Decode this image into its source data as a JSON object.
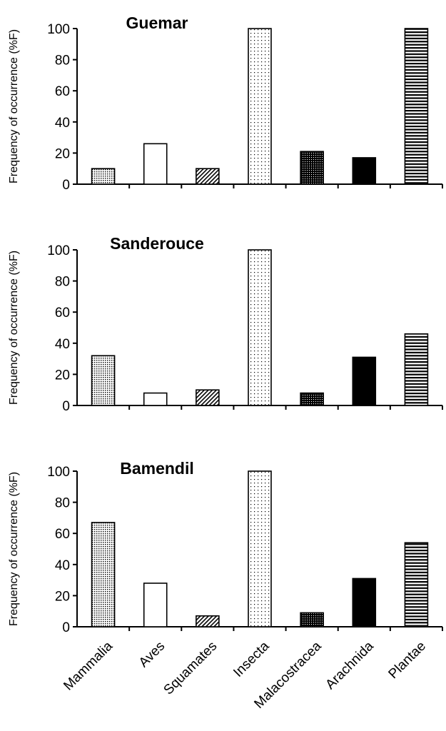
{
  "categories": [
    "Mammalia",
    "Aves",
    "Squamates",
    "Insecta",
    "Malacostracea",
    "Arachnida",
    "Plantae"
  ],
  "fill_styles": [
    "dense-dots",
    "white",
    "diagonal-hatch",
    "sparse-dots",
    "dark-dots",
    "black",
    "horizontal-stripes"
  ],
  "chart_data": [
    {
      "type": "bar",
      "title": "Guemar",
      "ylabel": "Frequency of occurrence (%F)",
      "xlabel": "",
      "ylim": [
        0,
        100
      ],
      "yticks": [
        0,
        20,
        40,
        60,
        80,
        100
      ],
      "categories": [
        "Mammalia",
        "Aves",
        "Squamates",
        "Insecta",
        "Malacostracea",
        "Arachnida",
        "Plantae"
      ],
      "values": [
        10,
        26,
        10,
        100,
        21,
        17,
        100
      ]
    },
    {
      "type": "bar",
      "title": "Sanderouce",
      "ylabel": "Frequency of occurrence (%F)",
      "xlabel": "",
      "ylim": [
        0,
        100
      ],
      "yticks": [
        0,
        20,
        40,
        60,
        80,
        100
      ],
      "categories": [
        "Mammalia",
        "Aves",
        "Squamates",
        "Insecta",
        "Malacostracea",
        "Arachnida",
        "Plantae"
      ],
      "values": [
        32,
        8,
        10,
        100,
        8,
        31,
        46
      ]
    },
    {
      "type": "bar",
      "title": "Bamendil",
      "ylabel": "Frequency of occurrence (%F)",
      "xlabel": "",
      "ylim": [
        0,
        100
      ],
      "yticks": [
        0,
        20,
        40,
        60,
        80,
        100
      ],
      "categories": [
        "Mammalia",
        "Aves",
        "Squamates",
        "Insecta",
        "Malacostracea",
        "Arachnida",
        "Plantae"
      ],
      "values": [
        67,
        28,
        7,
        100,
        9,
        31,
        54
      ]
    }
  ]
}
